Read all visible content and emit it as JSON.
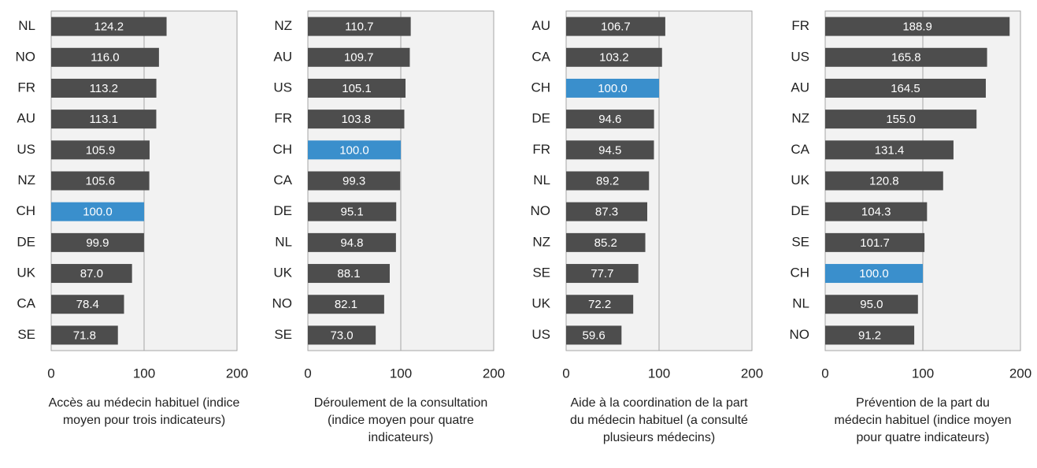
{
  "chart_data": [
    {
      "type": "bar",
      "orientation": "horizontal",
      "title": "Accès au médecin habituel (indice moyen pour trois indicateurs)",
      "categories": [
        "NL",
        "NO",
        "FR",
        "AU",
        "US",
        "NZ",
        "CH",
        "DE",
        "UK",
        "CA",
        "SE"
      ],
      "values": [
        124.2,
        116.0,
        113.2,
        113.1,
        105.9,
        105.6,
        100.0,
        99.9,
        87.0,
        78.4,
        71.8
      ],
      "value_labels": [
        "124.2",
        "116.0",
        "113.2",
        "113.1",
        "105.9",
        "105.6",
        "100.0",
        "99.9",
        "87.0",
        "78.4",
        "71.8"
      ],
      "colors": [
        "#4d4d4d",
        "#4d4d4d",
        "#4d4d4d",
        "#4d4d4d",
        "#4d4d4d",
        "#4d4d4d",
        "#3a8fcc",
        "#4d4d4d",
        "#4d4d4d",
        "#4d4d4d",
        "#4d4d4d"
      ],
      "xlim": [
        0,
        200
      ],
      "xticks": [
        0,
        100,
        200
      ],
      "grid": true
    },
    {
      "type": "bar",
      "orientation": "horizontal",
      "title": "Déroulement de la consultation (indice moyen pour quatre indicateurs)",
      "categories": [
        "NZ",
        "AU",
        "US",
        "FR",
        "CH",
        "CA",
        "DE",
        "NL",
        "UK",
        "NO",
        "SE"
      ],
      "values": [
        110.7,
        109.7,
        105.1,
        103.8,
        100.0,
        99.3,
        95.1,
        94.8,
        88.1,
        82.1,
        73.0
      ],
      "value_labels": [
        "110.7",
        "109.7",
        "105.1",
        "103.8",
        "100.0",
        "99.3",
        "95.1",
        "94.8",
        "88.1",
        "82.1",
        "73.0"
      ],
      "colors": [
        "#4d4d4d",
        "#4d4d4d",
        "#4d4d4d",
        "#4d4d4d",
        "#3a8fcc",
        "#4d4d4d",
        "#4d4d4d",
        "#4d4d4d",
        "#4d4d4d",
        "#4d4d4d",
        "#4d4d4d"
      ],
      "xlim": [
        0,
        200
      ],
      "xticks": [
        0,
        100,
        200
      ],
      "grid": true
    },
    {
      "type": "bar",
      "orientation": "horizontal",
      "title": "Aide à la coordination de la part du médecin habituel (a consulté plusieurs médecins)",
      "categories": [
        "AU",
        "CA",
        "CH",
        "DE",
        "FR",
        "NL",
        "NO",
        "NZ",
        "SE",
        "UK",
        "US"
      ],
      "values": [
        106.7,
        103.2,
        100.0,
        94.6,
        94.5,
        89.2,
        87.3,
        85.2,
        77.7,
        72.2,
        59.6
      ],
      "value_labels": [
        "106.7",
        "103.2",
        "100.0",
        "94.6",
        "94.5",
        "89.2",
        "87.3",
        "85.2",
        "77.7",
        "72.2",
        "59.6"
      ],
      "colors": [
        "#4d4d4d",
        "#4d4d4d",
        "#3a8fcc",
        "#4d4d4d",
        "#4d4d4d",
        "#4d4d4d",
        "#4d4d4d",
        "#4d4d4d",
        "#4d4d4d",
        "#4d4d4d",
        "#4d4d4d"
      ],
      "xlim": [
        0,
        200
      ],
      "xticks": [
        0,
        100,
        200
      ],
      "grid": true
    },
    {
      "type": "bar",
      "orientation": "horizontal",
      "title": "Prévention de la part du médecin habituel (indice moyen pour quatre indicateurs)",
      "categories": [
        "FR",
        "US",
        "AU",
        "NZ",
        "CA",
        "UK",
        "DE",
        "SE",
        "CH",
        "NL",
        "NO"
      ],
      "values": [
        188.9,
        165.8,
        164.5,
        155.0,
        131.4,
        120.8,
        104.3,
        101.7,
        100.0,
        95.0,
        91.2
      ],
      "value_labels": [
        "188.9",
        "165.8",
        "164.5",
        "155.0",
        "131.4",
        "120.8",
        "104.3",
        "101.7",
        "100.0",
        "95.0",
        "91.2"
      ],
      "colors": [
        "#4d4d4d",
        "#4d4d4d",
        "#4d4d4d",
        "#4d4d4d",
        "#4d4d4d",
        "#4d4d4d",
        "#4d4d4d",
        "#4d4d4d",
        "#3a8fcc",
        "#4d4d4d",
        "#4d4d4d"
      ],
      "xlim": [
        0,
        200
      ],
      "xticks": [
        0,
        100,
        200
      ],
      "grid": true
    }
  ]
}
